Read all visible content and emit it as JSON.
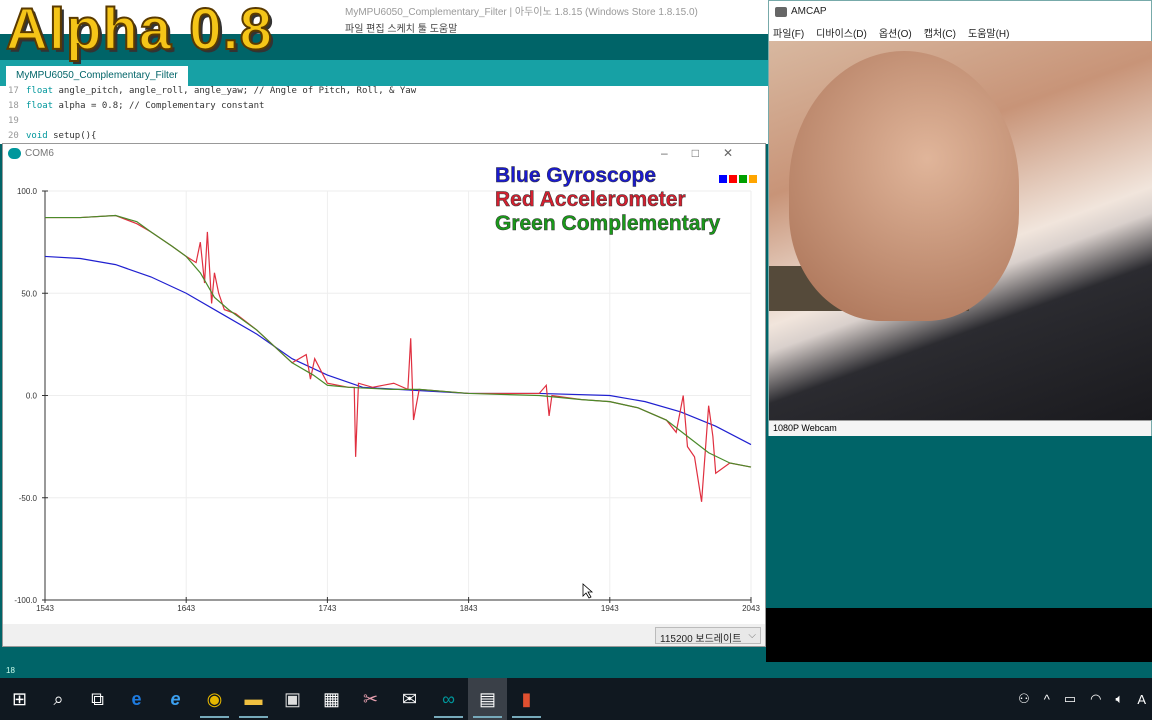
{
  "ide": {
    "title": "MyMPU6050_Complementary_Filter | 아두이노 1.8.15 (Windows Store 1.8.15.0)",
    "menu": "파일  편집  스케치  툴  도움말",
    "tab": "MyMPU6050_Complementary_Filter",
    "code": [
      {
        "n": "17",
        "kw": "float",
        "text": " angle_pitch, angle_roll, angle_yaw; // Angle of Pitch, Roll, & Yaw"
      },
      {
        "n": "18",
        "kw": "float",
        "text": " alpha = 0.8; // Complementary constant"
      },
      {
        "n": "19",
        "kw": "",
        "text": ""
      },
      {
        "n": "20",
        "kw": "void",
        "text": " setup(){"
      }
    ],
    "status_line": "18"
  },
  "overlay": "Alpha 0.8",
  "plotter": {
    "title": "COM6",
    "window_buttons": "–□✕",
    "baud": "115200 보드레이트",
    "baud_arrow": "⌵"
  },
  "legend": [
    {
      "label": "Blue Gyroscope",
      "color": "#1a1ad0"
    },
    {
      "label": "Red Accelerometer",
      "color": "#d42030"
    },
    {
      "label": "Green Complementary",
      "color": "#1a9a1a"
    }
  ],
  "legend_squares": [
    "#0000ff",
    "#ff0000",
    "#00a000",
    "#ffa500"
  ],
  "chart_data": {
    "type": "line",
    "xlim": [
      1543,
      2043
    ],
    "ylim": [
      -100,
      100
    ],
    "xticks": [
      "1543",
      "1643",
      "1743",
      "1843",
      "1943",
      "2043"
    ],
    "yticks": [
      "100.0",
      "50.0",
      "0.0",
      "-50.0",
      "-100.0"
    ],
    "grid": true,
    "series": [
      {
        "name": "Gyroscope",
        "color": "#2020d0",
        "x": [
          1543,
          1568,
          1593,
          1618,
          1643,
          1668,
          1693,
          1718,
          1743,
          1768,
          1793,
          1843,
          1893,
          1943,
          1968,
          1993,
          2018,
          2043
        ],
        "y": [
          68,
          67,
          64,
          58,
          50,
          40,
          30,
          18,
          10,
          4,
          3,
          1,
          1,
          0,
          -3,
          -8,
          -15,
          -24
        ]
      },
      {
        "name": "Accelerometer",
        "color": "#e03040",
        "x": [
          1543,
          1568,
          1593,
          1608,
          1618,
          1633,
          1643,
          1650,
          1653,
          1656,
          1658,
          1661,
          1663,
          1666,
          1670,
          1678,
          1693,
          1718,
          1728,
          1731,
          1734,
          1743,
          1758,
          1762,
          1763,
          1765,
          1775,
          1790,
          1800,
          1802,
          1804,
          1808,
          1843,
          1893,
          1898,
          1900,
          1902,
          1923,
          1943,
          1963,
          1983,
          1990,
          1995,
          1998,
          2003,
          2008,
          2013,
          2016,
          2018,
          2028,
          2043
        ],
        "y": [
          87,
          87,
          88,
          84,
          80,
          73,
          68,
          65,
          75,
          55,
          80,
          45,
          60,
          50,
          42,
          40,
          32,
          16,
          20,
          8,
          18,
          6,
          4,
          4,
          -30,
          6,
          4,
          6,
          3,
          28,
          -12,
          3,
          1,
          1,
          5,
          -10,
          0,
          -2,
          -3,
          -6,
          -12,
          -18,
          0,
          -25,
          -30,
          -52,
          -5,
          -20,
          -38,
          -33,
          -35
        ]
      },
      {
        "name": "Complementary",
        "color": "#4a8a2a",
        "x": [
          1543,
          1568,
          1593,
          1608,
          1618,
          1633,
          1643,
          1653,
          1663,
          1673,
          1693,
          1718,
          1733,
          1743,
          1758,
          1788,
          1808,
          1843,
          1893,
          1923,
          1943,
          1963,
          1983,
          1998,
          2013,
          2028,
          2043
        ],
        "y": [
          87,
          87,
          88,
          85,
          80,
          73,
          68,
          60,
          48,
          42,
          32,
          16,
          10,
          5,
          4,
          3,
          3,
          1,
          0,
          -2,
          -3,
          -6,
          -12,
          -20,
          -28,
          -33,
          -35
        ]
      }
    ]
  },
  "amcap": {
    "title": "AMCAP",
    "menu": [
      "파일(F)",
      "디바이스(D)",
      "옵션(O)",
      "캡처(C)",
      "도움말(H)"
    ],
    "status": "1080P Webcam"
  },
  "taskbar": {
    "icons": [
      "windows-start",
      "search",
      "task-view",
      "edge",
      "internet-explorer",
      "chrome",
      "file-explorer",
      "store",
      "calculator",
      "snipping",
      "mail",
      "arduino",
      "amcap",
      "powerpoint"
    ],
    "tray_ime": "A"
  }
}
